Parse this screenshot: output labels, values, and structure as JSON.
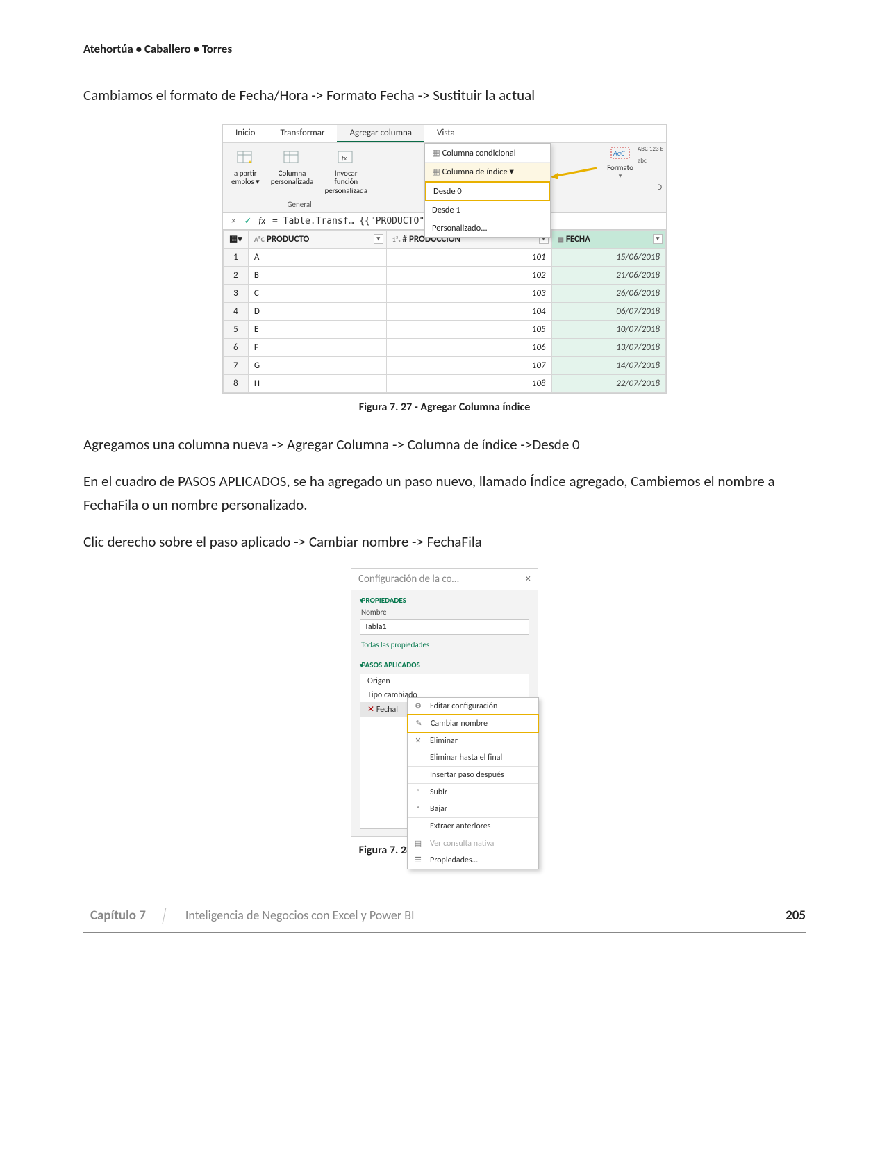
{
  "header": {
    "authors": "Atehortúa • Caballero • Torres"
  },
  "paragraphs": {
    "p1": "Cambiamos el formato de Fecha/Hora -> Formato Fecha -> Sustituir la actual",
    "p2": "Agregamos una columna nueva -> Agregar Columna -> Columna de índice ->Desde 0",
    "p3": "En el cuadro de PASOS APLICADOS, se ha agregado un paso nuevo, llamado Índice agregado, Cambiemos el nombre a FechaFila o un nombre personalizado.",
    "p4": "Clic derecho sobre el paso aplicado -> Cambiar nombre -> FechaFila"
  },
  "ribbon": {
    "tabs": {
      "t1": "Inicio",
      "t2": "Transformar",
      "t3": "Agregar columna",
      "t4": "Vista"
    },
    "buttons": {
      "b1a": "a partir",
      "b1b": "emplos ▾",
      "b2a": "Columna",
      "b2b": "personalizada",
      "b3a": "Invocar función",
      "b3b": "personalizada",
      "grp": "General",
      "fmt_label": "Formato",
      "abc123": "ABC 123 E",
      "abc_small": "abc"
    },
    "dropdown": {
      "d1": "Columna condicional",
      "d2": "Columna de índice ▾",
      "d3": "Desde 0",
      "d4": "Desde 1",
      "d5": "Personalizado..."
    }
  },
  "formula": {
    "x": "×",
    "check": "✓",
    "fx": "fx",
    "expr": "= Table.Transf…                          {{\"PRODUCTO\""
  },
  "grid": {
    "h1": "PRODUCTO",
    "h1_prefix": "AᴮC",
    "h2": "# PRODUCCIÓN",
    "h2_prefix": "1²₃",
    "h3": "FECHA",
    "rows": [
      {
        "i": "1",
        "p": "A",
        "n": "101",
        "f": "15/06/2018"
      },
      {
        "i": "2",
        "p": "B",
        "n": "102",
        "f": "21/06/2018"
      },
      {
        "i": "3",
        "p": "C",
        "n": "103",
        "f": "26/06/2018"
      },
      {
        "i": "4",
        "p": "D",
        "n": "104",
        "f": "06/07/2018"
      },
      {
        "i": "5",
        "p": "E",
        "n": "105",
        "f": "10/07/2018"
      },
      {
        "i": "6",
        "p": "F",
        "n": "106",
        "f": "13/07/2018"
      },
      {
        "i": "7",
        "p": "G",
        "n": "107",
        "f": "14/07/2018"
      },
      {
        "i": "8",
        "p": "H",
        "n": "108",
        "f": "22/07/2018"
      }
    ]
  },
  "captions": {
    "c1": "Figura 7. 27 - Agregar Columna índice",
    "c2": "Figura 7. 28 - Cambiar nombre a paso"
  },
  "panel": {
    "title": "Configuración de la co…",
    "close": "×",
    "sec1": "PROPIEDADES",
    "name_label": "Nombre",
    "name_value": "Tabla1",
    "all_props": "Todas las propiedades",
    "sec2": "PASOS APLICADOS",
    "step1": "Origen",
    "step2": "Tipo cambiado",
    "step3_prefix": "✕",
    "step3": "Fechal"
  },
  "context_menu": {
    "m1": "Editar configuración",
    "m2": "Cambiar nombre",
    "m3": "Eliminar",
    "m4": "Eliminar hasta el final",
    "m5": "Insertar paso después",
    "m6": "Subir",
    "m7": "Bajar",
    "m8": "Extraer anteriores",
    "m9": "Ver consulta nativa",
    "m10": "Propiedades…"
  },
  "footer": {
    "chapter": "Capítulo 7",
    "title": "Inteligencia de Negocios con Excel y Power BI",
    "page": "205"
  }
}
